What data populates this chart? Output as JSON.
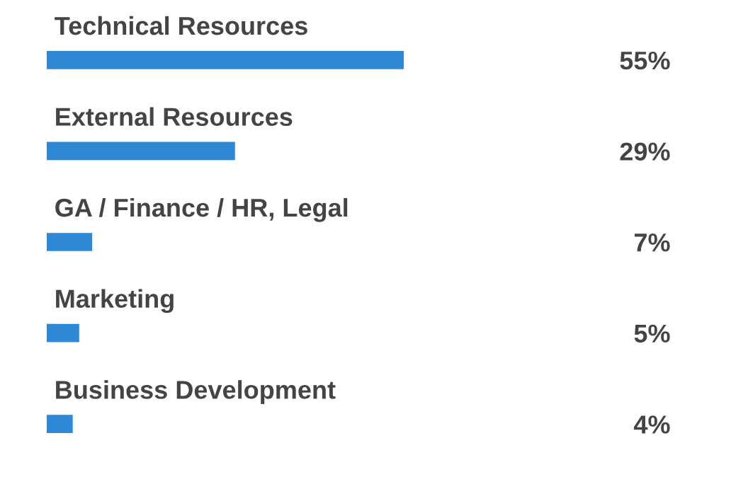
{
  "chart_data": {
    "type": "bar",
    "orientation": "horizontal",
    "categories": [
      "Technical Resources",
      "External Resources",
      "GA / Finance / HR, Legal",
      "Marketing",
      "Business Development"
    ],
    "values": [
      55,
      29,
      7,
      5,
      4
    ],
    "value_labels": [
      "55%",
      "29%",
      "7%",
      "5%",
      "4%"
    ],
    "color": "#2e88d6"
  }
}
